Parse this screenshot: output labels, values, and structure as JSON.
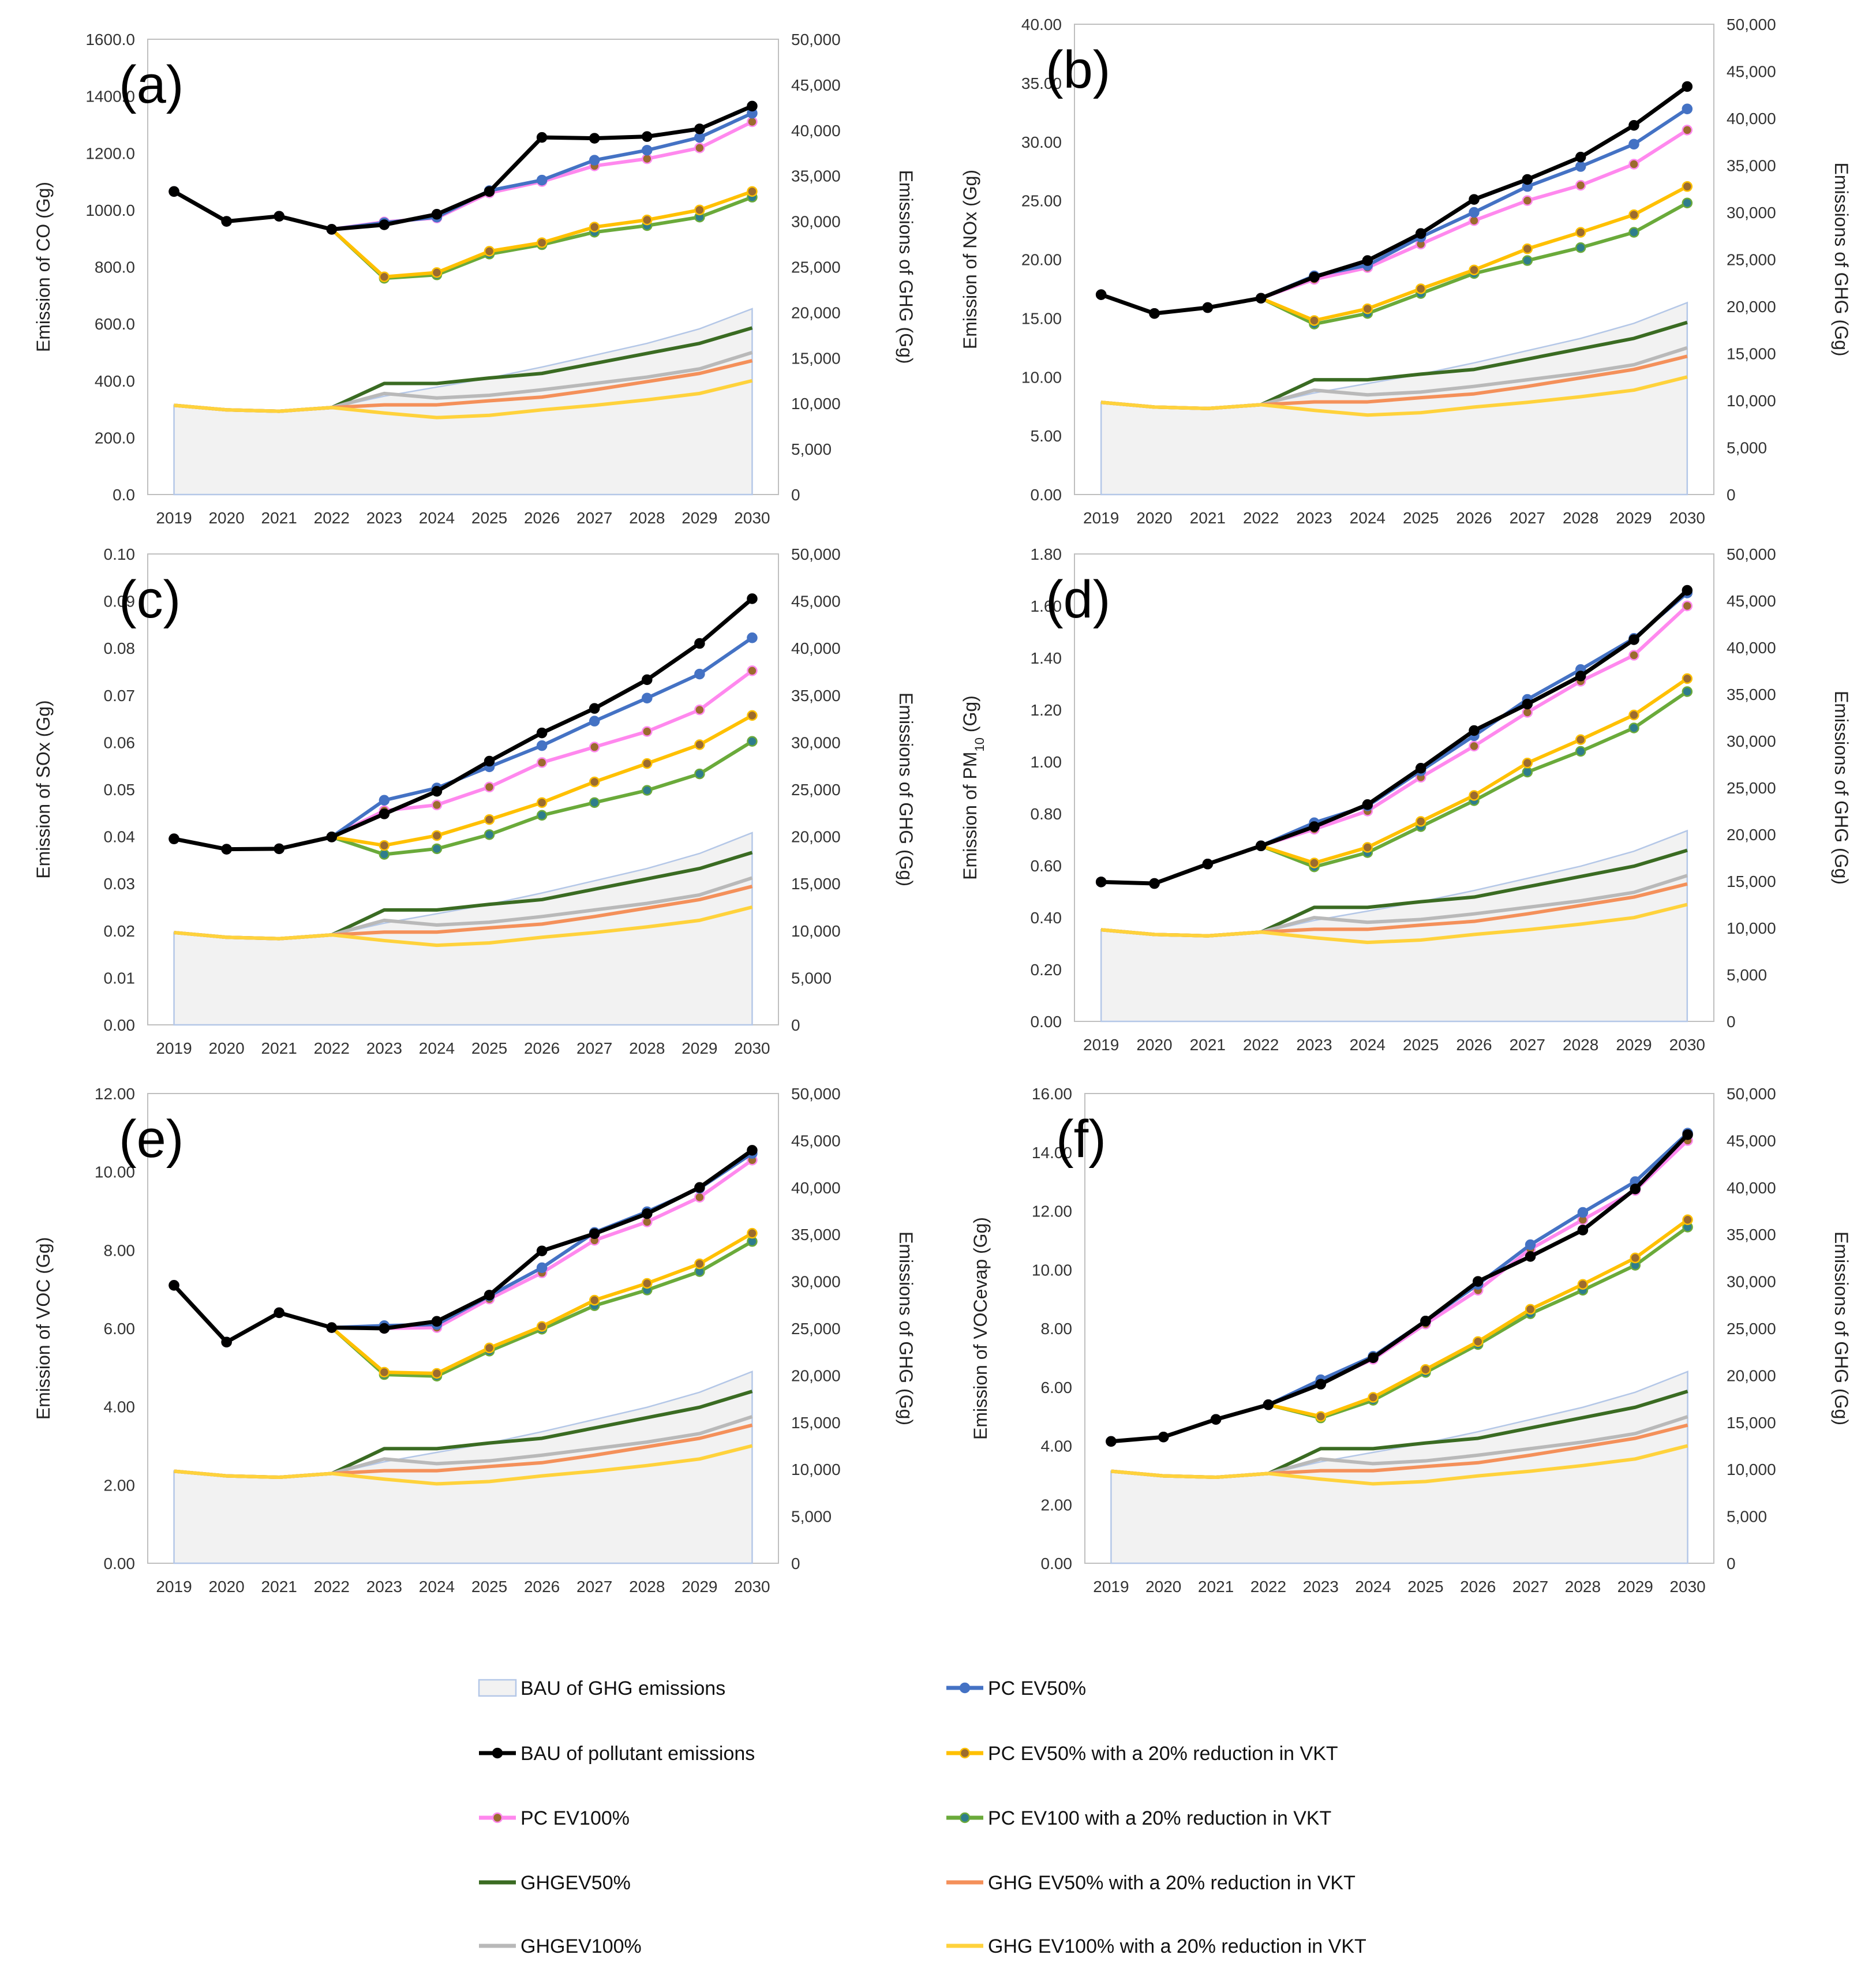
{
  "chart_data": {
    "type": "line",
    "years": [
      "2019",
      "2020",
      "2021",
      "2022",
      "2023",
      "2024",
      "2025",
      "2026",
      "2027",
      "2028",
      "2029",
      "2030"
    ],
    "ghg_axis": {
      "label": "Emissions of GHG (Gg)",
      "range": [
        0,
        50000
      ],
      "ticks": [
        "0",
        "5,000",
        "10,000",
        "15,000",
        "20,000",
        "25,000",
        "30,000",
        "35,000",
        "40,000",
        "45,000",
        "50,000"
      ]
    },
    "ghg_series": {
      "BAU of GHG emissions": [
        9800,
        9300,
        9150,
        9550,
        10800,
        11800,
        12800,
        14000,
        15300,
        16600,
        18200,
        20400
      ],
      "GHGEV50%": [
        9800,
        9300,
        9150,
        9550,
        12200,
        12200,
        12800,
        13300,
        14400,
        15500,
        16600,
        18300
      ],
      "GHGEV100%": [
        9800,
        9300,
        9150,
        9550,
        11100,
        10600,
        10900,
        11500,
        12200,
        12900,
        13800,
        15600
      ],
      "GHG EV50% with a 20% reduction in VKT": [
        9800,
        9300,
        9150,
        9550,
        9850,
        9850,
        10300,
        10700,
        11500,
        12400,
        13300,
        14700
      ],
      "GHG EV100% with a 20% reduction in VKT": [
        9800,
        9300,
        9150,
        9550,
        8950,
        8450,
        8700,
        9300,
        9800,
        10400,
        11100,
        12500
      ]
    },
    "legend": [
      {
        "key": "bau_ghg",
        "label": "BAU of GHG emissions"
      },
      {
        "key": "pc_ev50",
        "label": "PC EV50%"
      },
      {
        "key": "bau_pol",
        "label": "BAU of pollutant emissions"
      },
      {
        "key": "pc_ev50_vkt",
        "label": "PC EV50% with a 20% reduction in VKT"
      },
      {
        "key": "pc_ev100",
        "label": "PC EV100%"
      },
      {
        "key": "pc_ev100_vkt",
        "label": "PC EV100 with a 20% reduction in VKT"
      },
      {
        "key": "ghg_ev50",
        "label": "GHGEV50%"
      },
      {
        "key": "ghg_ev50_vkt",
        "label": "GHG EV50% with a 20% reduction in VKT"
      },
      {
        "key": "ghg_ev100",
        "label": "GHGEV100%"
      },
      {
        "key": "ghg_ev100_vkt",
        "label": "GHG EV100% with a 20% reduction in VKT"
      }
    ],
    "colors": {
      "bau_pol": "#000000",
      "pc_ev50": "#4472c4",
      "pc_ev100": "#ff88ee",
      "pc_ev50_vkt": "#ffc000",
      "pc_ev100_vkt": "#6aaa3a",
      "ghg_ev50": "#3a6b22",
      "ghg_ev100": "#b9b9b9",
      "ghg_ev50_vkt": "#f4905a",
      "ghg_ev100_vkt": "#ffd23c",
      "bau_ghg_fill": "#f2f2f2",
      "bau_ghg_line": "#b4c7e7",
      "marker_brown": "#9c6b2e",
      "marker_teal": "#2e7d8c"
    },
    "panels": [
      {
        "id": "a",
        "label": "(a)",
        "ylabel": "Emission of CO (Gg)",
        "ylim": [
          0,
          1600
        ],
        "yticks": [
          "0.0",
          "200.0",
          "400.0",
          "600.0",
          "800.0",
          "1000.0",
          "1200.0",
          "1400.0",
          "1600.0"
        ],
        "series": {
          "bau_pol": [
            1065,
            960,
            978,
            932,
            948,
            985,
            1065,
            1255,
            1252,
            1258,
            1285,
            1365
          ],
          "pc_ev50": [
            1065,
            960,
            978,
            932,
            955,
            975,
            1068,
            1105,
            1175,
            1210,
            1255,
            1340
          ],
          "pc_ev100": [
            1065,
            960,
            978,
            932,
            958,
            972,
            1060,
            1100,
            1155,
            1180,
            1218,
            1310
          ],
          "pc_ev50_vkt": [
            1065,
            960,
            978,
            932,
            765,
            780,
            855,
            885,
            940,
            965,
            1000,
            1065
          ],
          "pc_ev100_vkt": [
            1065,
            960,
            978,
            932,
            760,
            772,
            845,
            878,
            922,
            945,
            975,
            1045
          ]
        }
      },
      {
        "id": "b",
        "label": "(b)",
        "ylabel": "Emission of NOx (Gg)",
        "ylim": [
          0,
          40
        ],
        "yticks": [
          "0.00",
          "5.00",
          "10.00",
          "15.00",
          "20.00",
          "25.00",
          "30.00",
          "35.00",
          "40.00"
        ],
        "series": {
          "bau_pol": [
            17.0,
            15.4,
            15.9,
            16.7,
            18.5,
            19.9,
            22.2,
            25.1,
            26.8,
            28.7,
            31.4,
            34.7
          ],
          "pc_ev50": [
            17.0,
            15.4,
            15.9,
            16.7,
            18.6,
            19.5,
            21.9,
            24.0,
            26.2,
            27.9,
            29.8,
            32.8
          ],
          "pc_ev100": [
            17.0,
            15.4,
            15.9,
            16.7,
            18.3,
            19.3,
            21.3,
            23.3,
            25.0,
            26.3,
            28.1,
            31.0
          ],
          "pc_ev50_vkt": [
            17.0,
            15.4,
            15.9,
            16.7,
            14.8,
            15.8,
            17.5,
            19.1,
            20.9,
            22.3,
            23.8,
            26.2
          ],
          "pc_ev100_vkt": [
            17.0,
            15.4,
            15.9,
            16.7,
            14.5,
            15.4,
            17.1,
            18.8,
            19.9,
            21.0,
            22.3,
            24.8
          ]
        }
      },
      {
        "id": "c",
        "label": "(c)",
        "ylabel": "Emission of SOx (Gg)",
        "ylim": [
          0,
          0.1
        ],
        "yticks": [
          "0.00",
          "0.01",
          "0.02",
          "0.03",
          "0.04",
          "0.05",
          "0.06",
          "0.07",
          "0.08",
          "0.09",
          "0.10"
        ],
        "series": {
          "bau_pol": [
            0.0395,
            0.0373,
            0.0374,
            0.0399,
            0.0448,
            0.0496,
            0.056,
            0.062,
            0.0672,
            0.0733,
            0.081,
            0.0905
          ],
          "pc_ev50": [
            0.0395,
            0.0373,
            0.0374,
            0.0399,
            0.0477,
            0.0503,
            0.0548,
            0.0593,
            0.0645,
            0.0694,
            0.0745,
            0.0822
          ],
          "pc_ev100": [
            0.0395,
            0.0373,
            0.0374,
            0.0399,
            0.0455,
            0.0467,
            0.0505,
            0.0557,
            0.059,
            0.0623,
            0.0669,
            0.0752
          ],
          "pc_ev50_vkt": [
            0.0395,
            0.0373,
            0.0374,
            0.0399,
            0.0381,
            0.0402,
            0.0436,
            0.0472,
            0.0516,
            0.0555,
            0.0595,
            0.0657
          ],
          "pc_ev100_vkt": [
            0.0395,
            0.0373,
            0.0374,
            0.0399,
            0.0362,
            0.0374,
            0.0404,
            0.0445,
            0.0472,
            0.0498,
            0.0533,
            0.0602
          ]
        }
      },
      {
        "id": "d",
        "label": "(d)",
        "ylabel": "Emission of PM10 (Gg)",
        "ylim": [
          0,
          1.8
        ],
        "yticks": [
          "0.00",
          "0.20",
          "0.40",
          "0.60",
          "0.80",
          "1.00",
          "1.20",
          "1.40",
          "1.60",
          "1.80"
        ],
        "series": {
          "bau_pol": [
            0.537,
            0.531,
            0.606,
            0.676,
            0.75,
            0.835,
            0.975,
            1.12,
            1.222,
            1.33,
            1.47,
            1.66
          ],
          "pc_ev50": [
            0.537,
            0.531,
            0.606,
            0.676,
            0.765,
            0.83,
            0.965,
            1.1,
            1.24,
            1.355,
            1.475,
            1.65
          ],
          "pc_ev100": [
            0.537,
            0.531,
            0.606,
            0.676,
            0.74,
            0.81,
            0.94,
            1.06,
            1.19,
            1.31,
            1.41,
            1.6
          ],
          "pc_ev50_vkt": [
            0.537,
            0.531,
            0.606,
            0.676,
            0.61,
            0.67,
            0.77,
            0.87,
            0.995,
            1.085,
            1.18,
            1.32
          ],
          "pc_ev100_vkt": [
            0.537,
            0.531,
            0.606,
            0.676,
            0.595,
            0.65,
            0.75,
            0.85,
            0.96,
            1.04,
            1.13,
            1.27
          ]
        }
      },
      {
        "id": "e",
        "label": "(e)",
        "ylabel": "Emission of  VOC  (Gg)",
        "ylim": [
          0,
          12
        ],
        "yticks": [
          "0.00",
          "2.00",
          "4.00",
          "6.00",
          "8.00",
          "10.00",
          "12.00"
        ],
        "series": {
          "bau_pol": [
            7.1,
            5.65,
            6.4,
            6.02,
            6.0,
            6.18,
            6.85,
            7.98,
            8.42,
            8.93,
            9.6,
            10.55
          ],
          "pc_ev50": [
            7.1,
            5.65,
            6.4,
            6.02,
            6.07,
            6.1,
            6.83,
            7.55,
            8.45,
            8.98,
            9.58,
            10.47
          ],
          "pc_ev100": [
            7.1,
            5.65,
            6.4,
            6.02,
            6.0,
            6.02,
            6.75,
            7.42,
            8.25,
            8.72,
            9.35,
            10.3
          ],
          "pc_ev50_vkt": [
            7.1,
            5.65,
            6.4,
            6.02,
            4.88,
            4.85,
            5.5,
            6.05,
            6.72,
            7.15,
            7.65,
            8.43
          ],
          "pc_ev100_vkt": [
            7.1,
            5.65,
            6.4,
            6.02,
            4.82,
            4.78,
            5.42,
            5.98,
            6.58,
            6.98,
            7.45,
            8.22
          ]
        }
      },
      {
        "id": "f",
        "label": "(f)",
        "ylabel": "Emission of  VOCevap  (Gg)",
        "ylim": [
          0,
          16
        ],
        "yticks": [
          "0.00",
          "2.00",
          "4.00",
          "6.00",
          "8.00",
          "10.00",
          "12.00",
          "14.00",
          "16.00"
        ],
        "series": {
          "bau_pol": [
            4.15,
            4.3,
            4.9,
            5.4,
            6.1,
            7.0,
            8.25,
            9.6,
            10.45,
            11.35,
            12.75,
            14.6
          ],
          "pc_ev50": [
            4.15,
            4.3,
            4.9,
            5.4,
            6.25,
            7.05,
            8.25,
            9.5,
            10.85,
            11.95,
            13.0,
            14.65
          ],
          "pc_ev100": [
            4.15,
            4.3,
            4.9,
            5.4,
            6.15,
            6.95,
            8.15,
            9.3,
            10.7,
            11.7,
            12.7,
            14.4
          ],
          "pc_ev50_vkt": [
            4.15,
            4.3,
            4.9,
            5.4,
            5.0,
            5.65,
            6.6,
            7.55,
            8.65,
            9.5,
            10.4,
            11.7
          ],
          "pc_ev100_vkt": [
            4.15,
            4.3,
            4.9,
            5.4,
            4.95,
            5.55,
            6.5,
            7.45,
            8.5,
            9.3,
            10.15,
            11.45
          ]
        }
      }
    ]
  }
}
